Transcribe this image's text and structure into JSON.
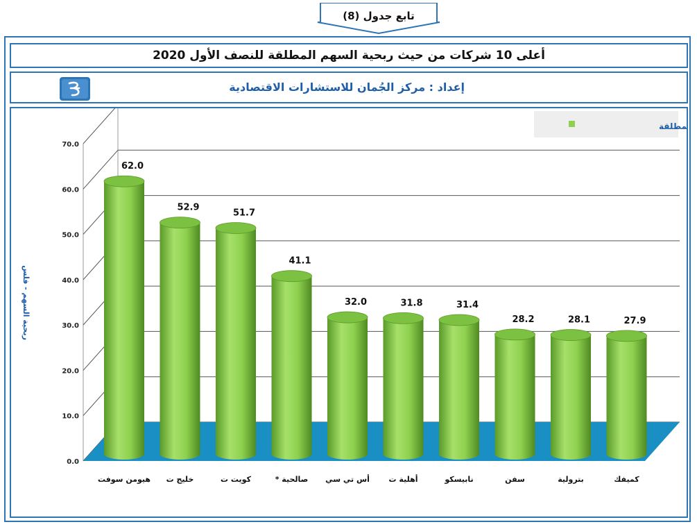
{
  "header": {
    "continuation_label": "تابع جدول (8)"
  },
  "title": "أعلى 10 شركات من حيث ربحية السهم المطلقة للنصف الأول 2020",
  "source": "إعداد : مركز الجُمان للاستشارات الاقتصادية",
  "colors": {
    "frame": "#2e75b6",
    "bar": "#8fd14f",
    "floor": "#1a8fc4",
    "legend_bg": "#eeeeee",
    "source_text": "#1f5fa8"
  },
  "chart_data": {
    "type": "bar",
    "style": "3d-cylinder",
    "categories": [
      "هيومن سوفت",
      "خليج ت",
      "كويت ت",
      "صالحية *",
      "أس تي سي",
      "أهلية ت",
      "نابيسكو",
      "سفن",
      "بترولية",
      "كميفك"
    ],
    "series": [
      {
        "name": "ربحية السهم المطلقة",
        "values": [
          62.0,
          52.9,
          51.7,
          41.1,
          32.0,
          31.8,
          31.4,
          28.2,
          28.1,
          27.9
        ]
      }
    ],
    "data_labels": [
      "62.0",
      "52.9",
      "51.7",
      "41.1",
      "32.0",
      "31.8",
      "31.4",
      "28.2",
      "28.1",
      "27.9"
    ],
    "title": "",
    "xlabel": "",
    "ylabel": "ربحية السهم - فلس",
    "ylim": [
      0,
      70
    ],
    "yticks": [
      "0.0",
      "10.0",
      "20.0",
      "30.0",
      "40.0",
      "50.0",
      "60.0",
      "70.0"
    ],
    "grid": true,
    "legend_position": "top-right"
  }
}
